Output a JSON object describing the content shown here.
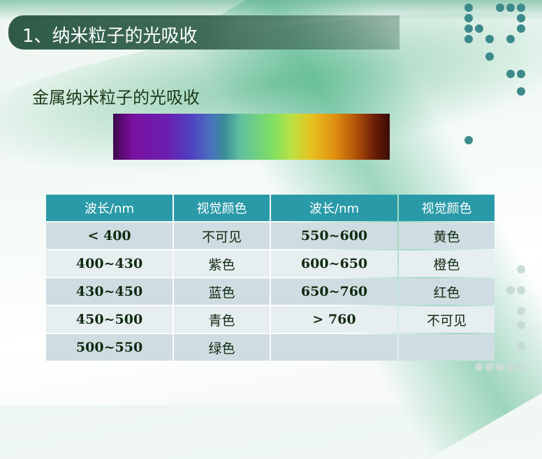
{
  "title": "1、纳米粒子的光吸收",
  "subtitle": "金属纳米粒子的光吸收",
  "table": {
    "headers": [
      "波长/nm",
      "视觉颜色",
      "波长/nm",
      "视觉颜色"
    ],
    "rows": [
      [
        "< 400",
        "不可见",
        "550~600",
        "黄色"
      ],
      [
        "400~430",
        "紫色",
        "600~650",
        "橙色"
      ],
      [
        "430~450",
        "蓝色",
        "650~760",
        "红色"
      ],
      [
        "450~500",
        "青色",
        "> 760",
        "不可见"
      ],
      [
        "500~550",
        "绿色",
        "",
        ""
      ]
    ]
  },
  "colors": {
    "header": "#2a9aa8",
    "title_bar": "#3f6b58",
    "accent_dots": "#3d8a8a"
  }
}
